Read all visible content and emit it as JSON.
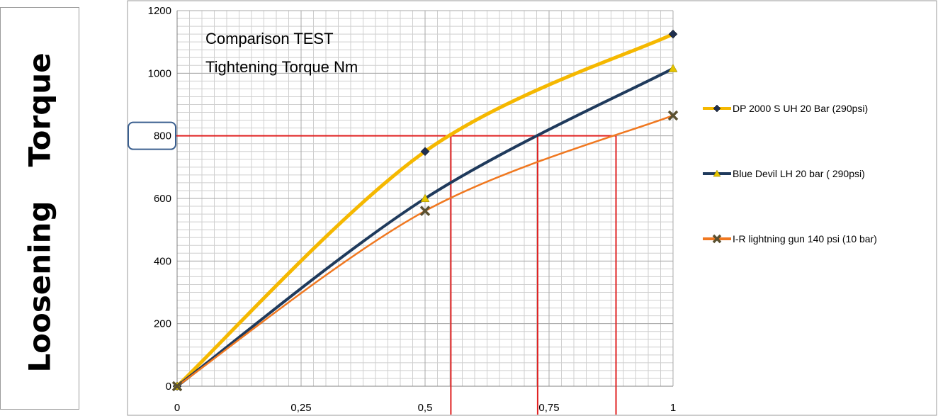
{
  "chart_data": {
    "type": "line",
    "title": "Comparison TEST",
    "subtitle": "Tightening Torque Nm",
    "ylabel_parts": [
      "Loosening",
      "Torque"
    ],
    "xlim": [
      0,
      1
    ],
    "ylim": [
      0,
      1200
    ],
    "x_ticks": [
      {
        "value": 0,
        "label": "0"
      },
      {
        "value": 0.25,
        "label": "0,25"
      },
      {
        "value": 0.5,
        "label": "0,5"
      },
      {
        "value": 0.75,
        "label": "0,75"
      },
      {
        "value": 1,
        "label": "1"
      }
    ],
    "y_ticks": [
      {
        "value": 0,
        "label": "0"
      },
      {
        "value": 200,
        "label": "200"
      },
      {
        "value": 400,
        "label": "400"
      },
      {
        "value": 600,
        "label": "600"
      },
      {
        "value": 800,
        "label": "800"
      },
      {
        "value": 1000,
        "label": "1000"
      },
      {
        "value": 1200,
        "label": "1200"
      }
    ],
    "grid": true,
    "legend_position": "right",
    "highlighted_y_label": "800",
    "series": [
      {
        "name": "DP 2000 S UH 20 Bar (290psi)",
        "color": "#f5b800",
        "marker": "diamond",
        "marker_color": "#1f2f4f",
        "x": [
          0,
          0.5,
          1
        ],
        "y": [
          0,
          750,
          1125
        ]
      },
      {
        "name": "Blue Devil LH 20 bar ( 290psi)",
        "color": "#1f3a5c",
        "marker": "triangle",
        "marker_color": "#e6c400",
        "x": [
          0,
          0.5,
          1
        ],
        "y": [
          0,
          600,
          1015
        ]
      },
      {
        "name": "I-R lightning gun 140 psi (10 bar)",
        "color": "#f07820",
        "marker": "x",
        "marker_color": "#5a5030",
        "x": [
          0,
          0.5,
          1
        ],
        "y": [
          0,
          560,
          865
        ]
      }
    ],
    "reference_lines": {
      "color": "#e02020",
      "y": 800,
      "x_intersections": [
        0.552,
        0.727,
        0.885
      ]
    }
  }
}
